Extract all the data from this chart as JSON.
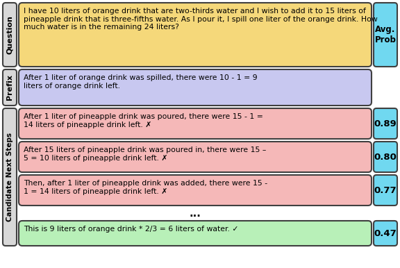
{
  "question_text": "I have 10 liters of orange drink that are two-thirds water and I wish to add it to 15 liters of pineapple drink that is three-fifths water. As I pour it, I spill one liter of the orange drink. How much water is in the remaining 24 liters?",
  "prefix_text": "After 1 liter of orange drink was spilled, there were 10 - 1 = 9\nliters of orange drink left.",
  "candidate_steps": [
    {
      "text": "After 1 liter of pineapple drink was poured, there were 15 - 1 =\n14 liters of pineapple drink left. ✗",
      "prob": "0.89",
      "correct": false
    },
    {
      "text": "After 15 liters of pineapple drink was poured in, there were 15 –\n5 = 10 liters of pineapple drink left. ✗",
      "prob": "0.80",
      "correct": false
    },
    {
      "text": "Then, after 1 liter of pineapple drink was added, there were 15 -\n1 = 14 liters of pineapple drink left. ✗",
      "prob": "0.77",
      "correct": false
    },
    {
      "text": "This is 9 liters of orange drink * 2/3 = 6 liters of water. ✓",
      "prob": "0.47",
      "correct": true
    }
  ],
  "label_question": "Question",
  "label_prefix": "Prefix",
  "label_candidate": "Candidate Next Steps",
  "label_avg_prob": "Avg.\nProb",
  "color_question_bg": "#f5d87a",
  "color_prefix_bg": "#c8c8f0",
  "color_candidate_wrong_bg": "#f5b8b8",
  "color_candidate_correct_bg": "#b8f0b8",
  "color_prob_bg": "#70d8f0",
  "color_label_bg": "#d8d8d8",
  "color_border": "#404040",
  "fig_bg": "#ffffff",
  "fig_w": 5.76,
  "fig_h": 3.86,
  "dpi": 100
}
